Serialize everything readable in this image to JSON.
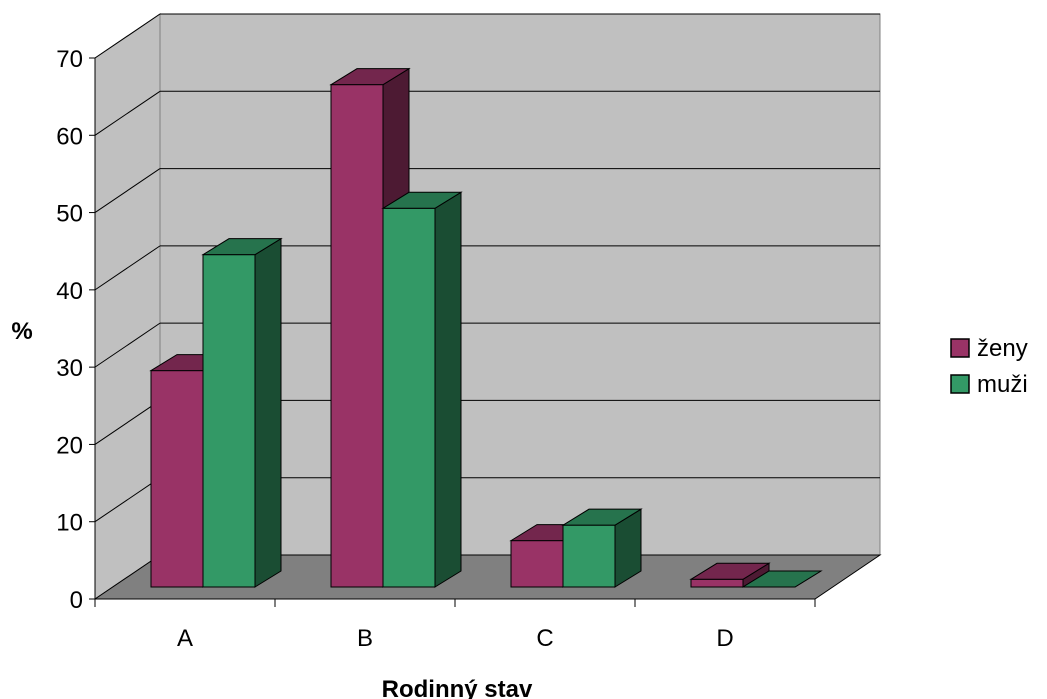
{
  "chart_data": {
    "type": "bar",
    "title": "",
    "xlabel": "Rodinný stav",
    "ylabel": "%",
    "categories": [
      "A",
      "B",
      "C",
      "D"
    ],
    "series": [
      {
        "name": "ženy",
        "values": [
          28,
          65,
          6,
          1
        ],
        "color": "#993366"
      },
      {
        "name": "muži",
        "values": [
          43,
          49,
          8,
          0
        ],
        "color": "#339966"
      }
    ],
    "ylim": [
      0,
      70
    ],
    "yticks": [
      "0",
      "10",
      "20",
      "30",
      "40",
      "50",
      "60",
      "70"
    ],
    "grid": true,
    "legend_position": "right",
    "style": "3d-clustered-column"
  }
}
